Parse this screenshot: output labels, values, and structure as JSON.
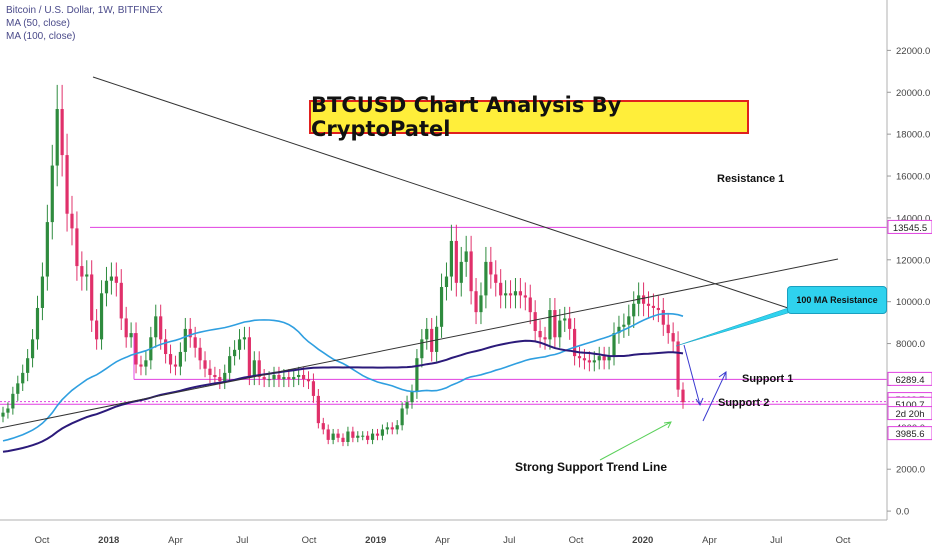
{
  "legend": {
    "symbol": "Bitcoin / U.S. Dollar, 1W, BITFINEX",
    "ma50": "MA (50, close)",
    "ma100": "MA (100, close)"
  },
  "title": "BTCUSD Chart Analysis By CryptoPatel",
  "annotations": {
    "resistance1": "Resistance 1",
    "support1": "Support 1",
    "support2": "Support 2",
    "trend": "Strong Support Trend Line",
    "ma_resistance": "100 MA Resistance"
  },
  "colors": {
    "up": "#2e8b3e",
    "down": "#e0306a",
    "ma50": "#2f9fe0",
    "ma100": "#2b1a7a",
    "level": "#e040e0",
    "trendline": "#555555",
    "axis_text": "#444444"
  },
  "chart_data": {
    "type": "line",
    "title": "BTCUSD Chart Analysis By CryptoPatel",
    "xlabel": "",
    "ylabel": "",
    "ylim": [
      -1500,
      24000
    ],
    "y_ticks": [
      0,
      2000,
      4000,
      6000,
      8000,
      10000,
      12000,
      14000,
      16000,
      18000,
      20000,
      22000
    ],
    "y_tick_labels": [
      "0.0",
      "2000.0",
      "4000.0",
      "",
      "8000.0",
      "10000.0",
      "12000.0",
      "14000.0",
      "16000.0",
      "18000.0",
      "20000.0",
      "22000.0"
    ],
    "x_ticks": [
      {
        "date": "2017-10",
        "label": "Oct"
      },
      {
        "date": "2018-01",
        "label": "2018"
      },
      {
        "date": "2018-04",
        "label": "Apr"
      },
      {
        "date": "2018-07",
        "label": "Jul"
      },
      {
        "date": "2018-10",
        "label": "Oct"
      },
      {
        "date": "2019-01",
        "label": "2019"
      },
      {
        "date": "2019-04",
        "label": "Apr"
      },
      {
        "date": "2019-07",
        "label": "Jul"
      },
      {
        "date": "2019-10",
        "label": "Oct"
      },
      {
        "date": "2020-01",
        "label": "2020"
      },
      {
        "date": "2020-04",
        "label": "Apr"
      },
      {
        "date": "2020-07",
        "label": "Jul"
      },
      {
        "date": "2020-10",
        "label": "Oct"
      }
    ],
    "price_labels": [
      {
        "value": 13545.5,
        "label": "13545.5"
      },
      {
        "value": 6289.4,
        "label": "6289.4"
      },
      {
        "value": 5228.7,
        "label": "5228.7"
      },
      {
        "value": 5100.7,
        "label": "5100.7"
      },
      {
        "value": 3985.6,
        "label": "3985.6"
      }
    ],
    "countdown_label": "2d 20h",
    "levels": [
      13545.5,
      6289.4,
      5228.7,
      5100.7
    ],
    "weekly_close": [
      4700,
      4900,
      5600,
      6100,
      6600,
      7300,
      8200,
      9700,
      11200,
      13800,
      16500,
      19200,
      17000,
      14200,
      13500,
      11700,
      11200,
      11300,
      9100,
      8200,
      10400,
      11000,
      11200,
      10900,
      9200,
      8300,
      8500,
      7000,
      6900,
      7200,
      8300,
      9300,
      8200,
      7500,
      7000,
      6900,
      7600,
      8700,
      8300,
      7800,
      7200,
      6800,
      6500,
      6400,
      6200,
      6600,
      7400,
      7700,
      8200,
      8300,
      6400,
      7200,
      6400,
      6300,
      6300,
      6500,
      6300,
      6400,
      6300,
      6400,
      6500,
      6300,
      6200,
      5500,
      4200,
      3900,
      3400,
      3700,
      3500,
      3300,
      3800,
      3500,
      3600,
      3600,
      3400,
      3700,
      3600,
      3900,
      4000,
      3900,
      4100,
      4900,
      5200,
      5700,
      7300,
      8200,
      8700,
      7600,
      8800,
      10700,
      11200,
      12900,
      10900,
      11900,
      12400,
      10500,
      9500,
      10300,
      11900,
      11300,
      10900,
      10300,
      10400,
      10300,
      10500,
      10300,
      10200,
      9500,
      8600,
      8300,
      8200,
      9600,
      8300,
      9100,
      9200,
      8700,
      7400,
      7300,
      7200,
      7100,
      7200,
      7400,
      7200,
      7400,
      8500,
      8800,
      8900,
      9300,
      9900,
      10300,
      9900,
      9800,
      9700,
      9600,
      8900,
      8500,
      8100,
      5800,
      5200
    ],
    "series": [
      {
        "name": "MA (50, close)",
        "color": "#2f9fe0"
      },
      {
        "name": "MA (100, close)",
        "color": "#2b1a7a"
      }
    ]
  }
}
